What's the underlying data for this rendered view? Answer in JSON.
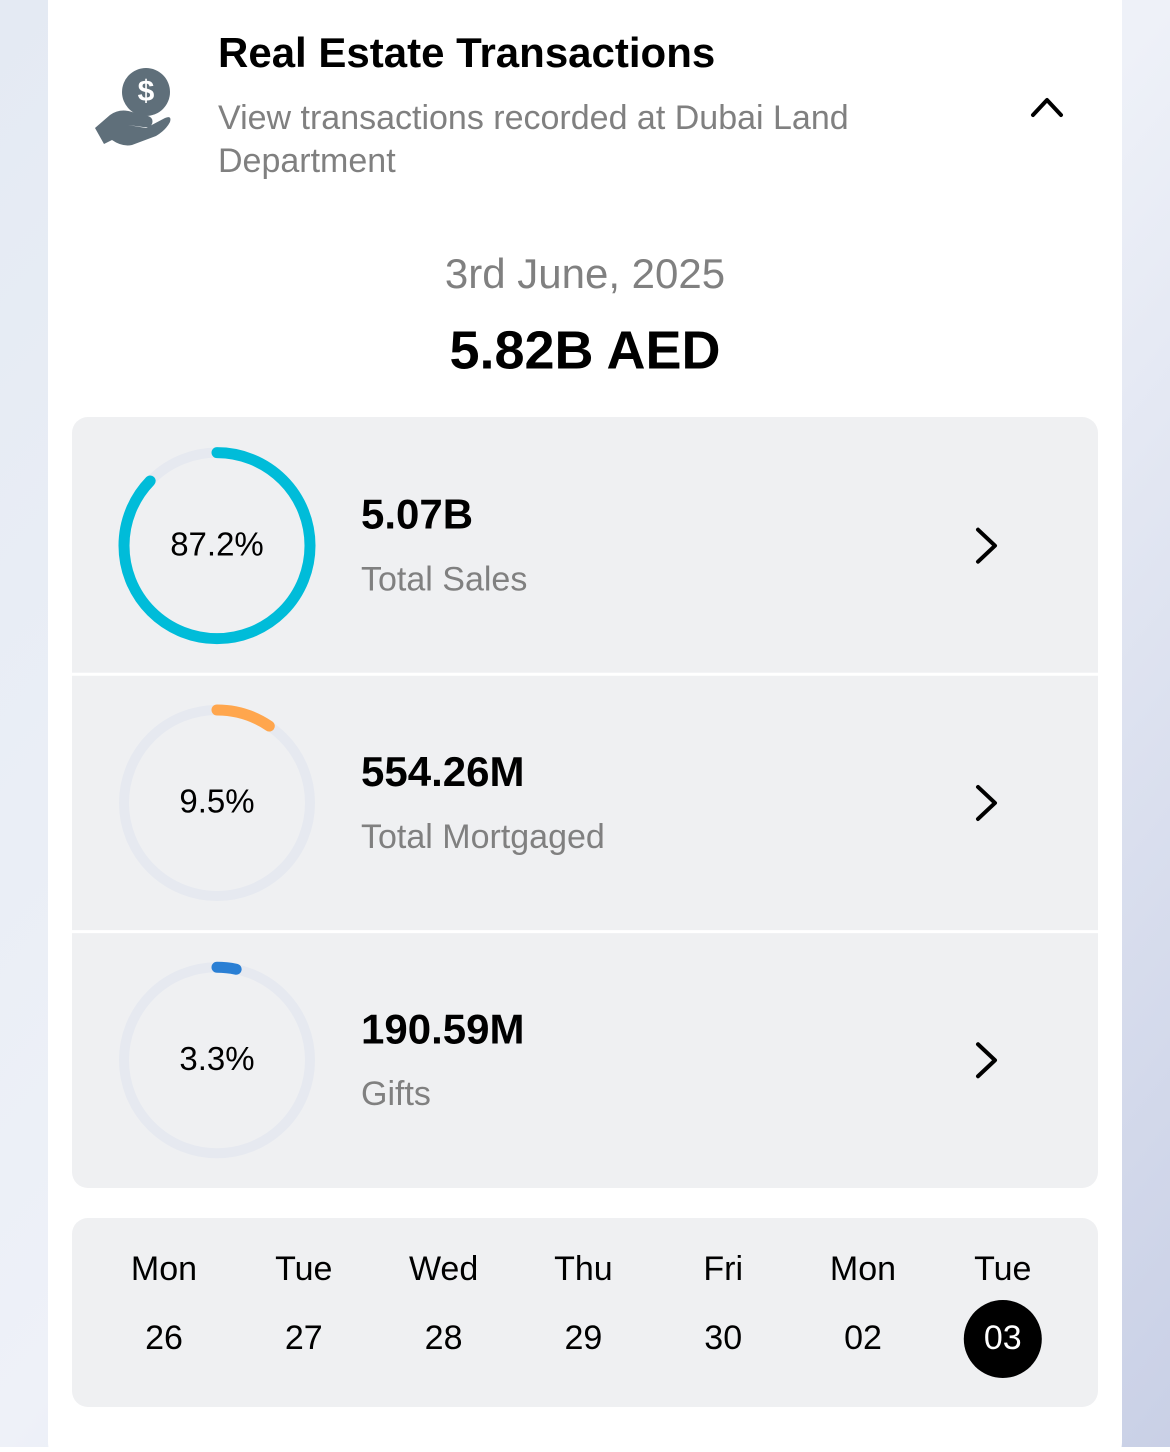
{
  "header": {
    "title": "Real Estate Transactions",
    "subtitle_line1": "View transactions recorded at Dubai Land",
    "subtitle_line2": "Department"
  },
  "date": "3rd June, 2025",
  "total": "5.82B AED",
  "items": [
    {
      "percent": 87.2,
      "percent_label": "87.2%",
      "value": "5.07B",
      "label": "Total Sales",
      "color": "#00bcd9"
    },
    {
      "percent": 9.5,
      "percent_label": "9.5%",
      "value": "554.26M",
      "label": "Total Mortgaged",
      "color": "#ffa64d"
    },
    {
      "percent": 3.3,
      "percent_label": "3.3%",
      "value": "190.59M",
      "label": "Gifts",
      "color": "#2a7fd4"
    }
  ],
  "days": [
    {
      "weekday": "Mon",
      "day": "26"
    },
    {
      "weekday": "Tue",
      "day": "27"
    },
    {
      "weekday": "Wed",
      "day": "28"
    },
    {
      "weekday": "Thu",
      "day": "29"
    },
    {
      "weekday": "Fri",
      "day": "30"
    },
    {
      "weekday": "Mon",
      "day": "02"
    },
    {
      "weekday": "Tue",
      "day": "03"
    }
  ],
  "selected_day": 6
}
